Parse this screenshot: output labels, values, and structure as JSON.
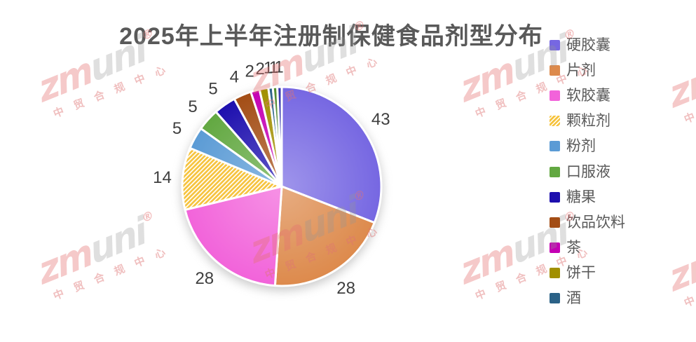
{
  "title": "2025年上半年注册制保健食品剂型分布",
  "watermark": {
    "logo_left": "zm",
    "logo_right": "uni",
    "registered": "®",
    "caption": "中 贸 合 规 中 心"
  },
  "chart_data": {
    "type": "pie",
    "title": "2025年上半年注册制保健食品剂型分布",
    "legend_position": "right",
    "start_angle_deg": 0,
    "direction": "clockwise",
    "data_labels": "values outside slices",
    "legend_labels": [
      "硬胶囊",
      "片剂",
      "软胶囊",
      "颗粒剂",
      "粉剂",
      "口服液",
      "糖果",
      "饮品饮料",
      "茶",
      "饼干",
      "酒"
    ],
    "slices": [
      {
        "label": "硬胶囊",
        "value": 43,
        "color": "#7667e2"
      },
      {
        "label": "片剂",
        "value": 28,
        "color": "#dd8a4c"
      },
      {
        "label": "软胶囊",
        "value": 28,
        "color": "#f263da"
      },
      {
        "label": "颗粒剂",
        "value": 14,
        "color": "#f6c33d",
        "hatch": true
      },
      {
        "label": "粉剂",
        "value": 5,
        "color": "#5b9bd5"
      },
      {
        "label": "口服液",
        "value": 5,
        "color": "#62a841"
      },
      {
        "label": "糖果",
        "value": 5,
        "color": "#1d0fae"
      },
      {
        "label": "饮品饮料",
        "value": 4,
        "color": "#a34d15"
      },
      {
        "label": "茶",
        "value": 2,
        "color": "#c400b4"
      },
      {
        "label": "饼干",
        "value": 2,
        "color": "#a18f00"
      },
      {
        "label": "酒",
        "value": 1,
        "color": "#2b6287"
      },
      {
        "label": "",
        "value": 1,
        "color": "#4f8a2e"
      },
      {
        "label": "",
        "value": 1,
        "color": "#3636ae"
      }
    ],
    "title_color": "#595959",
    "label_color": "#3f3f3f",
    "legend_text_color": "#595959",
    "background": "#ffffff",
    "watermark_color": "#e47070"
  }
}
